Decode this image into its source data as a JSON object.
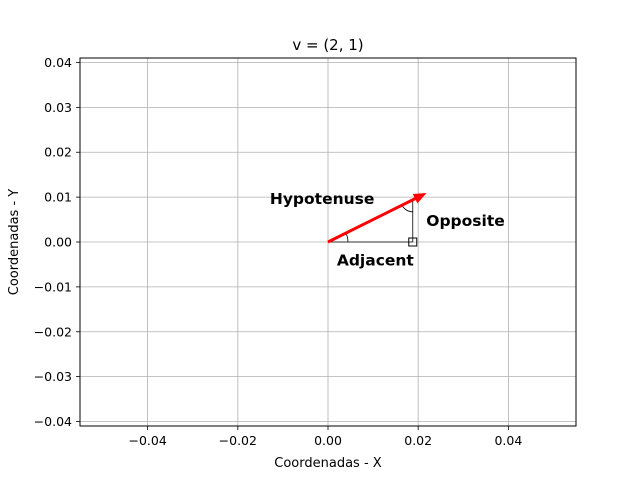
{
  "chart_data": {
    "type": "vector",
    "title": "v = (2, 1)",
    "xlabel": "Coordenadas - X",
    "ylabel": "Coordenadas - Y",
    "xlim": [
      -0.055,
      0.055
    ],
    "ylim": [
      -0.041,
      0.041
    ],
    "x_ticks": [
      -0.04,
      -0.02,
      0.0,
      0.02,
      0.04
    ],
    "x_tick_labels": [
      "−0.04",
      "−0.02",
      "0.00",
      "0.02",
      "0.04"
    ],
    "y_ticks": [
      0.04,
      0.03,
      0.02,
      0.01,
      0.0,
      -0.01,
      -0.02,
      -0.03,
      -0.04
    ],
    "y_tick_labels": [
      "0.04",
      "0.03",
      "0.02",
      "0.01",
      "0.00",
      "−0.01",
      "−0.02",
      "−0.03",
      "−0.04"
    ],
    "grid": true,
    "vector": {
      "x": 0,
      "y": 0,
      "dx": 2,
      "dy": 1,
      "color": "#ff0000"
    },
    "vector_tip": [
      0.0216,
      0.0108
    ],
    "triangle": {
      "vertices": [
        [
          0,
          0
        ],
        [
          0.0188,
          0
        ],
        [
          0.0188,
          0.0094
        ]
      ],
      "color": "#000000"
    },
    "annotations": [
      {
        "text": "Hypotenuse",
        "x": -0.0013,
        "y": 0.0096
      },
      {
        "text": "Opposite",
        "x": 0.0305,
        "y": 0.0047
      },
      {
        "text": "Adjacent",
        "x": 0.0105,
        "y": -0.0041
      }
    ]
  }
}
